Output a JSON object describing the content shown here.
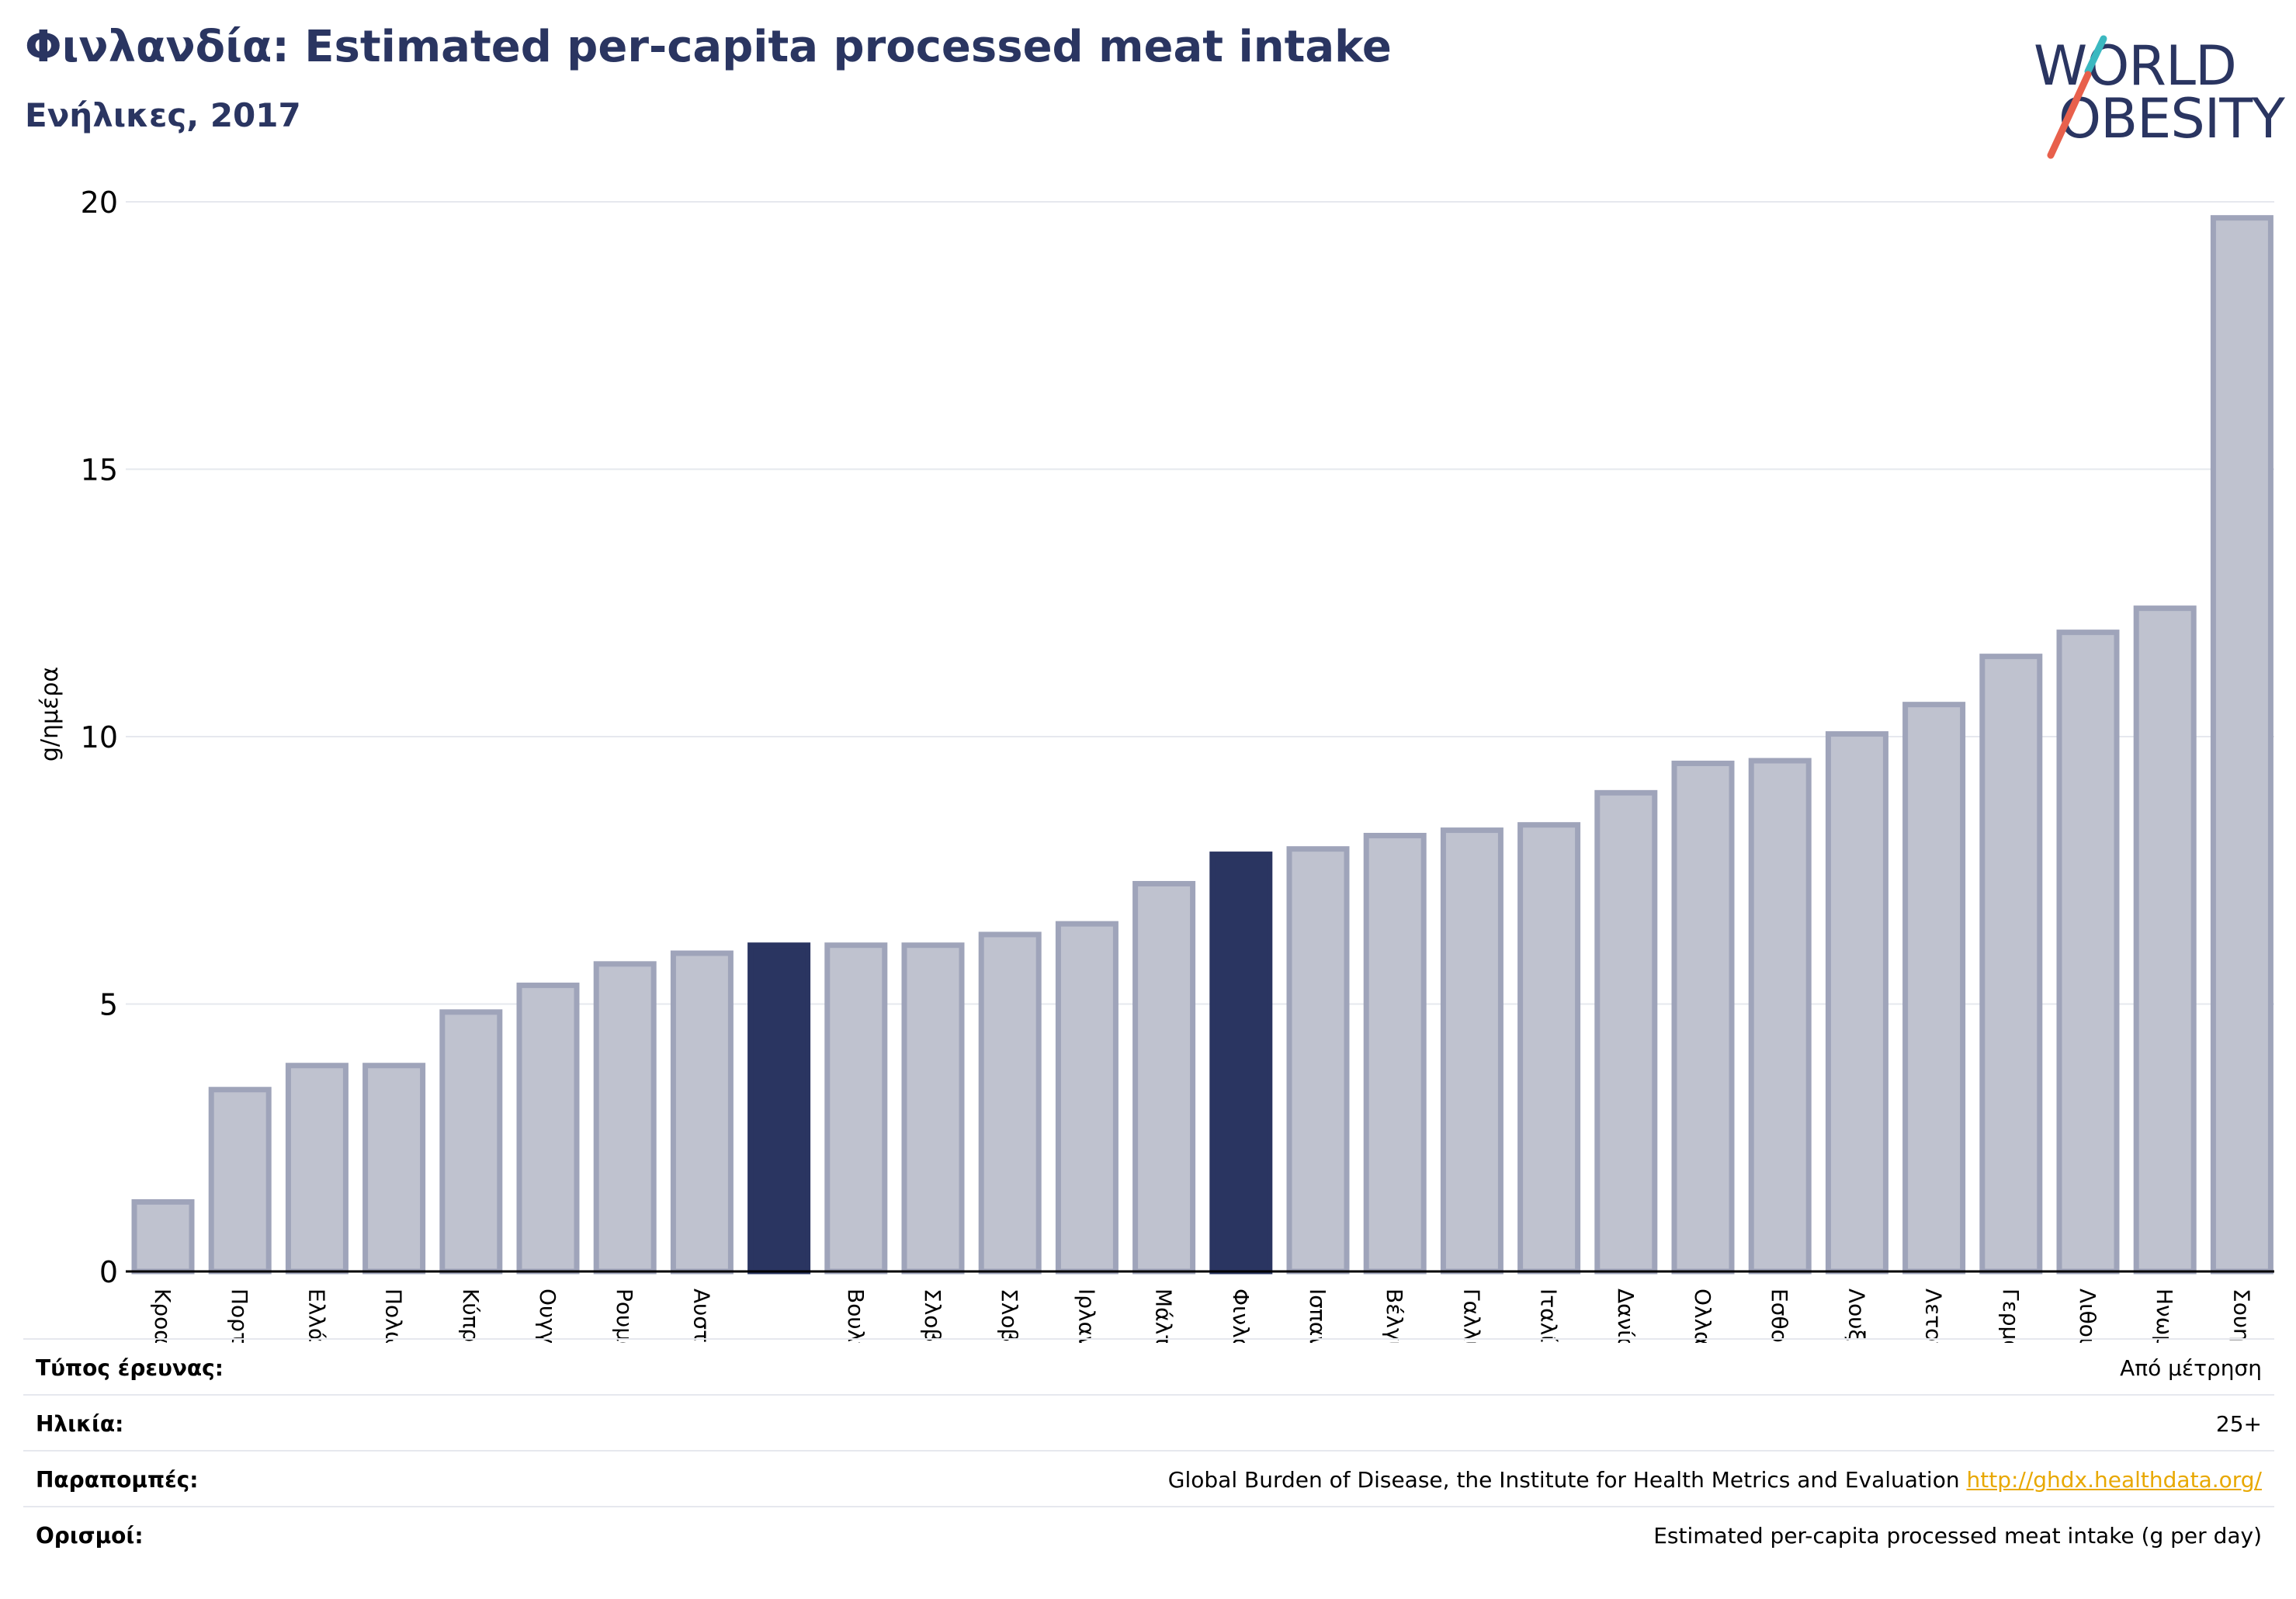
{
  "header": {
    "title": "Φινλανδία: Estimated per-capita processed meat intake",
    "subtitle": "Ενήλικες, 2017"
  },
  "logo": {
    "line1": "WORLD",
    "line2": "OBESITY",
    "slash_colors": [
      "#3bb8c0",
      "#e8604c"
    ]
  },
  "colors": {
    "bar": "#bfc2cf",
    "bar_border": "#9fa4ba",
    "highlight": "#2a3561",
    "grid": "#e6e8ee"
  },
  "chart_data": {
    "type": "bar",
    "ylabel": "g/ημέρα",
    "ylim": [
      0,
      20
    ],
    "yticks": [
      0,
      5,
      10,
      15,
      20
    ],
    "categories": [
      "Κροατία",
      "Πορτογαλία",
      "Ελλάδα",
      "Πολωνία",
      "Κύπρος",
      "Ουγγαρία",
      "Ρουμανία",
      "Αυστρία",
      "",
      "Βουλγαρία",
      "Σλοβακία",
      "Σλοβενία",
      "Ιρλανδία",
      "Μάλτα",
      "Φινλανδία",
      "Ισπανία",
      "Βέλγιο",
      "Γαλλία",
      "Ιταλία",
      "Δανία",
      "Ολλανδία",
      "Εσθονία",
      "Λουξεμβούργο",
      "Λετονία",
      "Γερμανία",
      "Λιθουανία",
      "Ηνωμένο Βασίλειο",
      "Σουηδία"
    ],
    "values": [
      1.3,
      3.4,
      3.85,
      3.85,
      4.85,
      5.35,
      5.75,
      5.95,
      6.1,
      6.1,
      6.1,
      6.3,
      6.5,
      7.25,
      7.8,
      7.9,
      8.15,
      8.25,
      8.35,
      8.95,
      9.5,
      9.55,
      10.05,
      10.6,
      11.5,
      11.95,
      12.4,
      19.7
    ],
    "highlighted": [
      8,
      14
    ]
  },
  "info": {
    "rows": [
      {
        "label": "Τύπος έρευνας:",
        "value": "Από μέτρηση"
      },
      {
        "label": "Ηλικία:",
        "value": "25+"
      },
      {
        "label": "Παραπομπές:",
        "value": "Global Burden of Disease, the Institute for Health Metrics and Evaluation",
        "link": "http://ghdx.healthdata.org/"
      },
      {
        "label": "Ορισμοί:",
        "value": "Estimated per-capita processed meat intake (g per day)"
      }
    ]
  }
}
